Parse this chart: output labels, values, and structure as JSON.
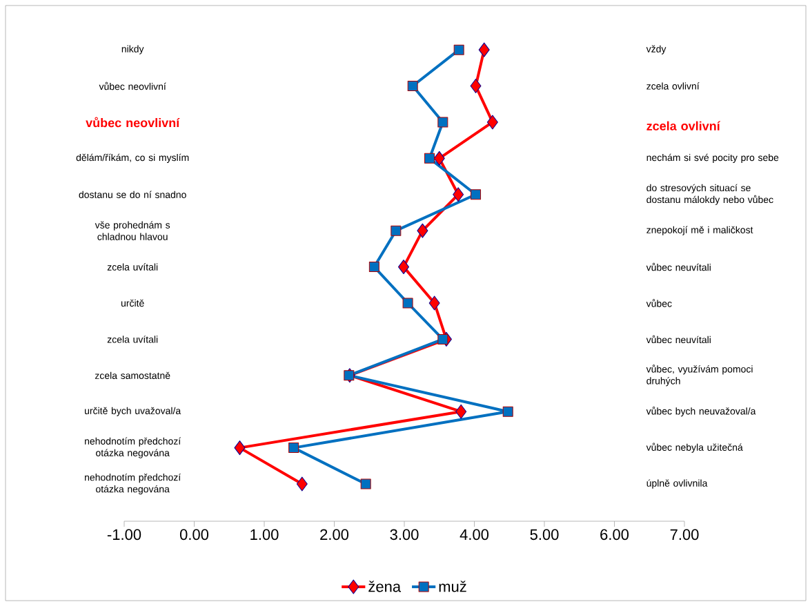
{
  "chart_data": {
    "type": "line",
    "orientation": "horizontal",
    "categories": [
      "nikdy",
      "vůbec neovlivní",
      "vůbec neovlivní",
      "dělám/říkám, co si myslím",
      "dostanu se do ní snadno",
      "vše prohednám s chladnou hlavou",
      "zcela uvítali",
      "určitě",
      "zcela uvítali",
      "zcela samostatně",
      "určitě bych uvažoval/a",
      "nehodnotím předchozí otázka negována",
      "nehodnotím předchozí otázka negována"
    ],
    "annotations": [
      "vždy",
      "zcela ovlivní",
      "zcela ovlivní",
      "nechám si své pocity pro sebe",
      "do stresových situací se dostanu málokdy nebo vůbec",
      "znepokojí mě i maličkost",
      "vůbec neuvítali",
      "vůbec",
      "vůbec neuvítali",
      "vůbec, využívám pomoci druhých",
      "vůbec bych neuvažoval/a",
      "vůbec nebyla užitečná",
      "úplně ovlivnila"
    ],
    "series": [
      {
        "name": "žena",
        "color": "#ff0000",
        "marker": "diamond",
        "values": [
          4.14,
          4.02,
          4.26,
          3.5,
          3.77,
          3.26,
          2.99,
          3.43,
          3.6,
          2.22,
          3.81,
          0.65,
          1.54
        ]
      },
      {
        "name": "muž",
        "color": "#0070c0",
        "marker": "square",
        "values": [
          3.78,
          3.12,
          3.55,
          3.36,
          4.02,
          2.88,
          2.57,
          3.05,
          3.55,
          2.21,
          4.48,
          1.42,
          2.45
        ]
      }
    ],
    "xlim": [
      -1,
      7
    ],
    "xticks": [
      {
        "value": -1,
        "label": "-1.00"
      },
      {
        "value": 0,
        "label": "0.00"
      },
      {
        "value": 1,
        "label": "1.00"
      },
      {
        "value": 2,
        "label": "2.00"
      },
      {
        "value": 3,
        "label": "3.00"
      },
      {
        "value": 4,
        "label": "4.00"
      },
      {
        "value": 5,
        "label": "5.00"
      },
      {
        "value": 6,
        "label": "6.00"
      },
      {
        "value": 7,
        "label": "7.00"
      }
    ],
    "tick_labels": "x",
    "grid": false,
    "legend": "bottom"
  }
}
